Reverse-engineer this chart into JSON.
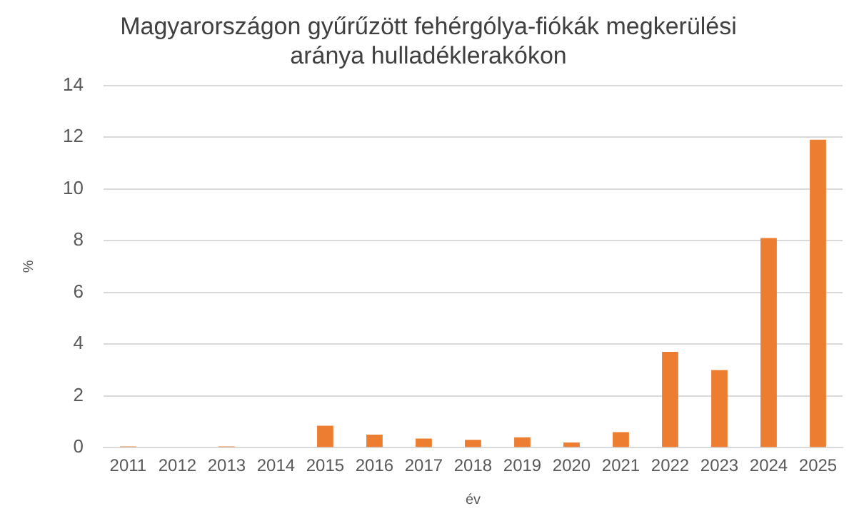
{
  "chart_data": {
    "type": "bar",
    "title": "Magyarországon gyűrűzött fehérgólya-fiókák megkerülési aránya hulladéklerakókon",
    "xlabel": "év",
    "ylabel": "%",
    "categories": [
      "2011",
      "2012",
      "2013",
      "2014",
      "2015",
      "2016",
      "2017",
      "2018",
      "2019",
      "2020",
      "2021",
      "2022",
      "2023",
      "2024",
      "2025"
    ],
    "values": [
      0.05,
      0,
      0.05,
      0,
      0.85,
      0.5,
      0.35,
      0.3,
      0.4,
      0.2,
      0.6,
      3.7,
      3.0,
      8.1,
      11.9
    ],
    "color": "#ed7d31",
    "ylim": [
      0,
      14
    ],
    "yticks": [
      0,
      2,
      4,
      6,
      8,
      10,
      12,
      14
    ],
    "grid": "y",
    "legend": false
  }
}
